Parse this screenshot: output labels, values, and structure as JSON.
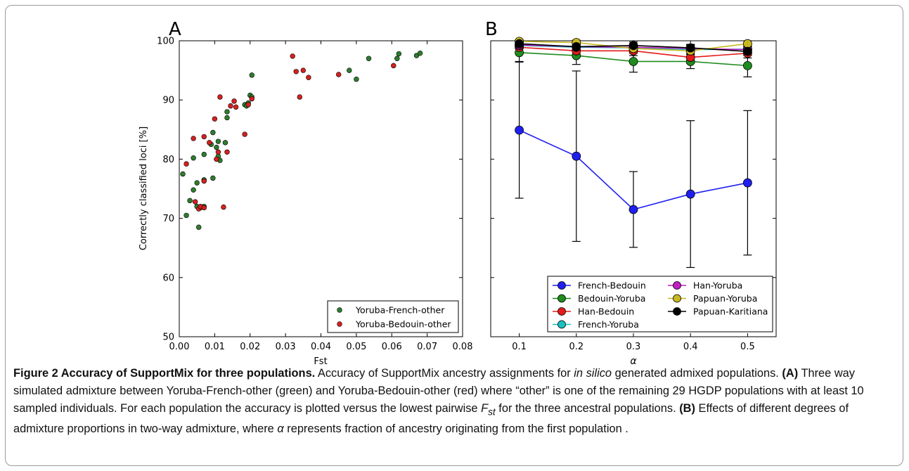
{
  "chart_data": [
    {
      "panel_label": "A",
      "type": "scatter",
      "xlabel": "Fst",
      "ylabel": "Correctly classified loci [%]",
      "xlim": [
        0.0,
        0.08
      ],
      "ylim": [
        50,
        100
      ],
      "xticks": [
        "0.00",
        "0.01",
        "0.02",
        "0.03",
        "0.04",
        "0.05",
        "0.06",
        "0.07",
        "0.08"
      ],
      "yticks": [
        "50",
        "60",
        "70",
        "80",
        "90",
        "100"
      ],
      "legend_position": "lower-right",
      "series": [
        {
          "name": "Yoruba-French-other",
          "color": "#2e7d2e",
          "points": [
            [
              0.001,
              77.5
            ],
            [
              0.002,
              70.5
            ],
            [
              0.003,
              73
            ],
            [
              0.004,
              80.2
            ],
            [
              0.004,
              74.8
            ],
            [
              0.005,
              76
            ],
            [
              0.005,
              72
            ],
            [
              0.0055,
              68.5
            ],
            [
              0.006,
              71.8
            ],
            [
              0.007,
              76.5
            ],
            [
              0.007,
              80.8
            ],
            [
              0.007,
              72
            ],
            [
              0.009,
              82.5
            ],
            [
              0.0095,
              84.5
            ],
            [
              0.0095,
              76.8
            ],
            [
              0.0105,
              82
            ],
            [
              0.011,
              80.5
            ],
            [
              0.011,
              83
            ],
            [
              0.0115,
              79.8
            ],
            [
              0.013,
              82.8
            ],
            [
              0.0135,
              88
            ],
            [
              0.0135,
              87
            ],
            [
              0.0185,
              89.2
            ],
            [
              0.019,
              89
            ],
            [
              0.0195,
              89.5
            ],
            [
              0.02,
              90.8
            ],
            [
              0.0205,
              90.5
            ],
            [
              0.0205,
              94.2
            ],
            [
              0.048,
              95
            ],
            [
              0.05,
              93.5
            ],
            [
              0.0535,
              97
            ],
            [
              0.0615,
              97
            ],
            [
              0.062,
              97.8
            ],
            [
              0.067,
              97.5
            ],
            [
              0.068,
              97.9
            ]
          ]
        },
        {
          "name": "Yoruba-Bedouin-other",
          "color": "#d62020",
          "points": [
            [
              0.002,
              79.2
            ],
            [
              0.004,
              83.5
            ],
            [
              0.0045,
              72.8
            ],
            [
              0.0055,
              71.6
            ],
            [
              0.006,
              72
            ],
            [
              0.007,
              83.8
            ],
            [
              0.007,
              76.3
            ],
            [
              0.007,
              71.8
            ],
            [
              0.0085,
              82.8
            ],
            [
              0.01,
              86.8
            ],
            [
              0.0105,
              80
            ],
            [
              0.011,
              81.2
            ],
            [
              0.0115,
              90.5
            ],
            [
              0.0135,
              81.2
            ],
            [
              0.0125,
              71.9
            ],
            [
              0.0145,
              89
            ],
            [
              0.0155,
              89.8
            ],
            [
              0.016,
              88.8
            ],
            [
              0.0185,
              84.2
            ],
            [
              0.0195,
              89.2
            ],
            [
              0.0205,
              90.2
            ],
            [
              0.032,
              97.4
            ],
            [
              0.033,
              94.8
            ],
            [
              0.034,
              90.5
            ],
            [
              0.035,
              95
            ],
            [
              0.0365,
              93.8
            ],
            [
              0.045,
              94.3
            ],
            [
              0.0605,
              95.8
            ]
          ]
        }
      ]
    },
    {
      "panel_label": "B",
      "type": "line",
      "xlabel": "α",
      "ylabel": "",
      "xlim": [
        0.05,
        0.55
      ],
      "ylim": [
        50,
        100
      ],
      "x": [
        0.1,
        0.2,
        0.3,
        0.4,
        0.5
      ],
      "xticks": [
        "0.1",
        "0.2",
        "0.3",
        "0.4",
        "0.5"
      ],
      "legend_position": "lower-right",
      "series": [
        {
          "name": "French-Bedouin",
          "color": "#1f1ff0",
          "values": [
            84.9,
            80.5,
            71.5,
            74.1,
            76.0
          ],
          "err": [
            11.5,
            14.4,
            6.4,
            12.4,
            12.2
          ]
        },
        {
          "name": "Bedouin-Yoruba",
          "color": "#1e8c1e",
          "values": [
            98.0,
            97.5,
            96.5,
            96.5,
            95.8
          ],
          "err": [
            1.5,
            1.5,
            1.8,
            1.2,
            1.9
          ]
        },
        {
          "name": "Han-Bedouin",
          "color": "#e41a1a",
          "values": [
            98.9,
            98.3,
            98.3,
            97.2,
            97.9
          ],
          "err": [
            0.8,
            1.0,
            0.8,
            1.0,
            0.8
          ]
        },
        {
          "name": "French-Yoruba",
          "color": "#19c0c0",
          "values": [
            99.2,
            98.9,
            98.8,
            98.5,
            98.6
          ],
          "err": [
            0.6,
            0.6,
            0.6,
            0.7,
            0.6
          ]
        },
        {
          "name": "Han-Yoruba",
          "color": "#c21ec2",
          "values": [
            99.3,
            99.0,
            98.9,
            98.7,
            98.5
          ],
          "err": [
            0.5,
            0.6,
            0.6,
            0.6,
            0.6
          ]
        },
        {
          "name": "Papuan-Yoruba",
          "color": "#c8b820",
          "values": [
            99.9,
            99.7,
            98.7,
            98.3,
            99.5
          ],
          "err": [
            0.3,
            0.4,
            0.8,
            0.9,
            0.5
          ]
        },
        {
          "name": "Papuan-Karitiana",
          "color": "#000000",
          "values": [
            99.5,
            99.0,
            99.2,
            98.8,
            98.2
          ],
          "err": [
            0.5,
            0.6,
            0.6,
            0.6,
            0.7
          ]
        }
      ]
    }
  ],
  "caption": {
    "title": "Figure 2 Accuracy of SupportMix for three populations.",
    "s1": " Accuracy of SupportMix ancestry assignments for ",
    "s1_italic": "in silico",
    "s2": " generated admixed populations. ",
    "a_label": "(A)",
    "s3": " Three way simulated admixture between Yoruba-French-other (green) and Yoruba-Bedouin-other (red) where “other” is one of the remaining 29 HGDP populations with at least 10 sampled individuals. For each population the accuracy is plotted versus the lowest pairwise ",
    "fst_main": "F",
    "fst_sub": "st",
    "s4": " for the three ancestral populations. ",
    "b_label": "(B)",
    "s5": " Effects of different degrees of admixture proportions in two-way admixture, where ",
    "alpha": "α",
    "s6": " represents fraction of ancestry originating from the first population ."
  }
}
